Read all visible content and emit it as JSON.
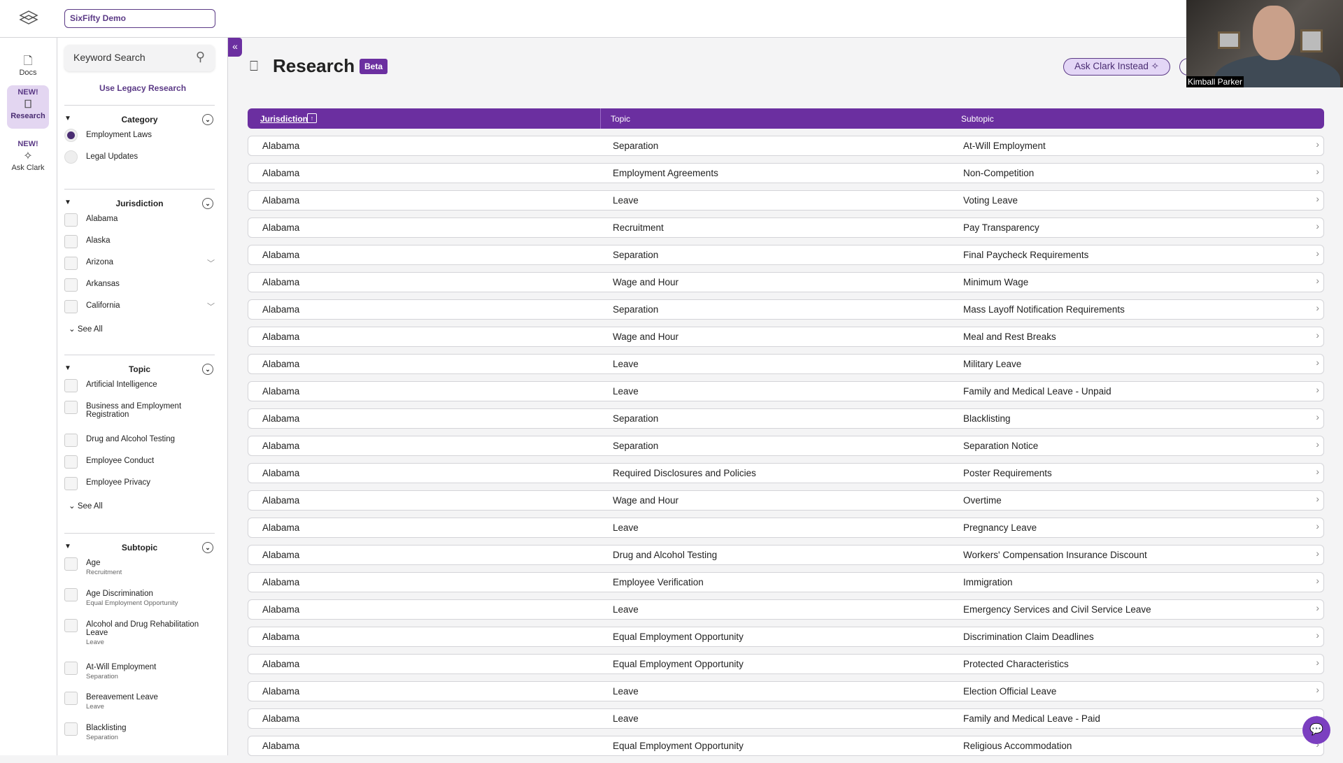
{
  "topbar": {
    "org": "SixFifty Demo"
  },
  "rail": [
    {
      "label": "Docs",
      "icon": "document-icon"
    },
    {
      "badge": "NEW!",
      "label": "Research",
      "icon": "book-icon",
      "active": true
    },
    {
      "badge": "NEW!",
      "label": "Ask Clark",
      "icon": "sparkle-icon"
    }
  ],
  "filters": {
    "search_placeholder": "Keyword Search",
    "legacy_link": "Use Legacy Research",
    "category": {
      "title": "Category",
      "options": [
        {
          "label": "Employment Laws",
          "selected": true
        },
        {
          "label": "Legal Updates",
          "selected": false
        }
      ]
    },
    "jurisdiction": {
      "title": "Jurisdiction",
      "options": [
        "Alabama",
        "Alaska",
        "Arizona",
        "Arkansas",
        "California"
      ],
      "see_all": "See All"
    },
    "topic": {
      "title": "Topic",
      "options": [
        "Artificial Intelligence",
        "Business and Employment Registration",
        "Drug and Alcohol Testing",
        "Employee Conduct",
        "Employee Privacy"
      ],
      "see_all": "See All"
    },
    "subtopic": {
      "title": "Subtopic",
      "options": [
        {
          "label": "Age",
          "topic": "Recruitment"
        },
        {
          "label": "Age Discrimination",
          "topic": "Equal Employment Opportunity"
        },
        {
          "label": "Alcohol and Drug Rehabilitation Leave",
          "topic": "Leave"
        },
        {
          "label": "At-Will Employment",
          "topic": "Separation"
        },
        {
          "label": "Bereavement Leave",
          "topic": "Leave"
        },
        {
          "label": "Blacklisting",
          "topic": "Separation"
        }
      ]
    }
  },
  "page": {
    "title": "Research",
    "badge": "Beta",
    "ask_button": "Ask Clark Instead"
  },
  "video": {
    "name": "Kimball Parker"
  },
  "table": {
    "headers": [
      "Jurisdiction",
      "Topic",
      "Subtopic"
    ],
    "rows": [
      [
        "Alabama",
        "Separation",
        "At-Will Employment"
      ],
      [
        "Alabama",
        "Employment Agreements",
        "Non-Competition"
      ],
      [
        "Alabama",
        "Leave",
        "Voting Leave"
      ],
      [
        "Alabama",
        "Recruitment",
        "Pay Transparency"
      ],
      [
        "Alabama",
        "Separation",
        "Final Paycheck Requirements"
      ],
      [
        "Alabama",
        "Wage and Hour",
        "Minimum Wage"
      ],
      [
        "Alabama",
        "Separation",
        "Mass Layoff Notification Requirements"
      ],
      [
        "Alabama",
        "Wage and Hour",
        "Meal and Rest Breaks"
      ],
      [
        "Alabama",
        "Leave",
        "Military Leave"
      ],
      [
        "Alabama",
        "Leave",
        "Family and Medical Leave - Unpaid"
      ],
      [
        "Alabama",
        "Separation",
        "Blacklisting"
      ],
      [
        "Alabama",
        "Separation",
        "Separation Notice"
      ],
      [
        "Alabama",
        "Required Disclosures and Policies",
        "Poster Requirements"
      ],
      [
        "Alabama",
        "Wage and Hour",
        "Overtime"
      ],
      [
        "Alabama",
        "Leave",
        "Pregnancy Leave"
      ],
      [
        "Alabama",
        "Drug and Alcohol Testing",
        "Workers' Compensation Insurance Discount"
      ],
      [
        "Alabama",
        "Employee Verification",
        "Immigration"
      ],
      [
        "Alabama",
        "Leave",
        "Emergency Services and Civil Service Leave"
      ],
      [
        "Alabama",
        "Equal Employment Opportunity",
        "Discrimination Claim Deadlines"
      ],
      [
        "Alabama",
        "Equal Employment Opportunity",
        "Protected Characteristics"
      ],
      [
        "Alabama",
        "Leave",
        "Election Official Leave"
      ],
      [
        "Alabama",
        "Leave",
        "Family and Medical Leave - Paid"
      ],
      [
        "Alabama",
        "Equal Employment Opportunity",
        "Religious Accommodation"
      ]
    ]
  },
  "colors": {
    "brand": "#6b2fa0",
    "accent_light": "#e3d6f1"
  }
}
